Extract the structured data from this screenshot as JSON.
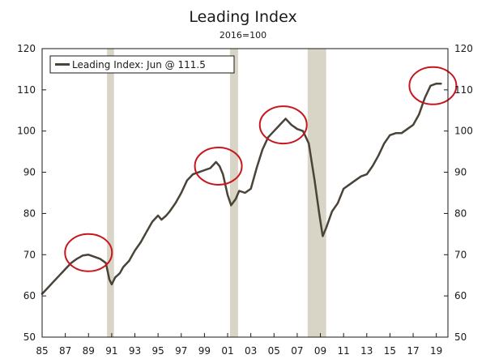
{
  "chart_data": {
    "type": "line",
    "title": "Leading Index",
    "subtitle": "2016=100",
    "xlabel": "",
    "ylabel": "",
    "ylim": [
      50,
      120
    ],
    "xlim": [
      1985,
      2020
    ],
    "y_ticks": [
      50,
      60,
      70,
      80,
      90,
      100,
      110,
      120
    ],
    "x_ticks": [
      {
        "value": 1985,
        "label": "85"
      },
      {
        "value": 1987,
        "label": "87"
      },
      {
        "value": 1989,
        "label": "89"
      },
      {
        "value": 1991,
        "label": "91"
      },
      {
        "value": 1993,
        "label": "93"
      },
      {
        "value": 1995,
        "label": "95"
      },
      {
        "value": 1997,
        "label": "97"
      },
      {
        "value": 1999,
        "label": "99"
      },
      {
        "value": 2001,
        "label": "01"
      },
      {
        "value": 2003,
        "label": "03"
      },
      {
        "value": 2005,
        "label": "05"
      },
      {
        "value": 2007,
        "label": "07"
      },
      {
        "value": 2009,
        "label": "09"
      },
      {
        "value": 2011,
        "label": "11"
      },
      {
        "value": 2013,
        "label": "13"
      },
      {
        "value": 2015,
        "label": "15"
      },
      {
        "value": 2017,
        "label": "17"
      },
      {
        "value": 2019,
        "label": "19"
      }
    ],
    "grid": false,
    "legend": {
      "placement": "top-left",
      "entries": [
        "Leading Index: Jun @ 111.5"
      ]
    },
    "recessions": [
      {
        "start": 1990.6,
        "end": 1991.2
      },
      {
        "start": 2001.2,
        "end": 2001.9
      },
      {
        "start": 2007.9,
        "end": 2009.5
      }
    ],
    "highlight_circles": [
      {
        "center_x": 1989.0,
        "center_y": 70.5
      },
      {
        "center_x": 2000.2,
        "center_y": 91.5
      },
      {
        "center_x": 2005.8,
        "center_y": 101.5
      },
      {
        "center_x": 2018.7,
        "center_y": 111.0
      }
    ],
    "series": [
      {
        "name": "Leading Index: Jun @ 111.5",
        "color": "#4a4338",
        "x": [
          1985.0,
          1985.5,
          1986.0,
          1986.5,
          1987.0,
          1987.5,
          1988.0,
          1988.5,
          1989.0,
          1989.5,
          1990.0,
          1990.5,
          1990.8,
          1991.0,
          1991.3,
          1991.7,
          1992.0,
          1992.5,
          1993.0,
          1993.5,
          1994.0,
          1994.5,
          1995.0,
          1995.3,
          1995.7,
          1996.0,
          1996.5,
          1997.0,
          1997.5,
          1998.0,
          1998.5,
          1999.0,
          1999.5,
          2000.0,
          2000.3,
          2000.6,
          2001.0,
          2001.3,
          2001.7,
          2002.0,
          2002.5,
          2003.0,
          2003.5,
          2004.0,
          2004.5,
          2005.0,
          2005.5,
          2006.0,
          2006.5,
          2007.0,
          2007.5,
          2008.0,
          2008.5,
          2008.9,
          2009.2,
          2009.5,
          2010.0,
          2010.5,
          2011.0,
          2011.5,
          2012.0,
          2012.5,
          2013.0,
          2013.5,
          2014.0,
          2014.5,
          2015.0,
          2015.5,
          2016.0,
          2016.5,
          2017.0,
          2017.5,
          2018.0,
          2018.5,
          2019.0,
          2019.4
        ],
        "values": [
          60.5,
          62.0,
          63.5,
          65.0,
          66.5,
          68.0,
          69.0,
          69.8,
          70.0,
          69.5,
          69.0,
          68.0,
          64.0,
          62.8,
          64.5,
          65.5,
          67.0,
          68.5,
          71.0,
          73.0,
          75.5,
          78.0,
          79.5,
          78.5,
          79.5,
          80.5,
          82.5,
          85.0,
          88.0,
          89.5,
          90.0,
          90.5,
          91.0,
          92.5,
          91.5,
          89.5,
          84.5,
          82.0,
          83.5,
          85.5,
          85.0,
          86.0,
          91.0,
          95.5,
          98.5,
          100.0,
          101.5,
          103.0,
          101.5,
          100.5,
          100.0,
          97.0,
          88.0,
          80.0,
          74.5,
          76.5,
          80.5,
          82.5,
          86.0,
          87.0,
          88.0,
          89.0,
          89.5,
          91.5,
          94.0,
          97.0,
          99.0,
          99.5,
          99.5,
          100.5,
          101.5,
          104.0,
          108.0,
          111.0,
          111.5,
          111.5
        ]
      }
    ]
  }
}
